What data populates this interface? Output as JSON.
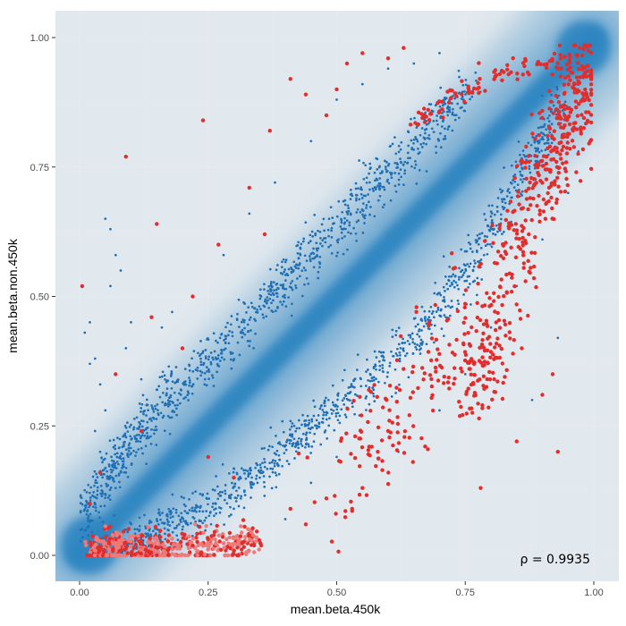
{
  "chart_data": {
    "type": "scatter",
    "xlabel": "mean.beta.450k",
    "ylabel": "mean.beta.non.450k",
    "xlim": [
      0,
      1
    ],
    "ylim": [
      0,
      1
    ],
    "x_ticks": [
      "0.00",
      "0.25",
      "0.50",
      "0.75",
      "1.00"
    ],
    "y_ticks": [
      "0.00",
      "0.25",
      "0.50",
      "0.75",
      "1.00"
    ],
    "grid": true,
    "annotation": "ρ = 0.9935",
    "colors": {
      "panel_background": "#ebebeb",
      "gridline": "#ffffff",
      "density_high": "#2e86c1",
      "blue_points": "#1f6fb4",
      "red_points": "#e32d2d",
      "red_points_light": "#ef7a7a"
    },
    "background": {
      "type": "density-2d",
      "ridges": [
        {
          "x": [
            0.0,
            0.1,
            0.25,
            0.5,
            0.75,
            1.0
          ],
          "y": [
            0.0,
            0.1,
            0.25,
            0.5,
            0.75,
            1.0
          ]
        }
      ]
    },
    "series": [
      {
        "color": "#1f6fb4",
        "segments": [
          {
            "x": [
              0.01,
              0.08,
              0.17,
              0.3,
              0.42,
              0.55,
              0.67,
              0.76
            ],
            "y": [
              0.06,
              0.2,
              0.3,
              0.42,
              0.55,
              0.69,
              0.81,
              0.9
            ],
            "n": 1050,
            "spread": 0.025
          },
          {
            "x": [
              0.05,
              0.15,
              0.25,
              0.35,
              0.45,
              0.55,
              0.65,
              0.75,
              0.85,
              0.94
            ],
            "y": [
              0.003,
              0.045,
              0.09,
              0.16,
              0.25,
              0.33,
              0.42,
              0.54,
              0.72,
              0.88
            ],
            "n": 1050,
            "spread": 0.022
          }
        ],
        "outliers": [
          [
            0.01,
            0.43
          ],
          [
            0.02,
            0.45
          ],
          [
            0.03,
            0.38
          ],
          [
            0.04,
            0.33
          ],
          [
            0.05,
            0.28
          ],
          [
            0.06,
            0.52
          ],
          [
            0.07,
            0.58
          ],
          [
            0.08,
            0.55
          ],
          [
            0.09,
            0.4
          ],
          [
            0.1,
            0.45
          ],
          [
            0.12,
            0.34
          ],
          [
            0.05,
            0.65
          ],
          [
            0.06,
            0.63
          ],
          [
            0.02,
            0.37
          ],
          [
            0.04,
            0.2
          ],
          [
            0.03,
            0.24
          ],
          [
            0.13,
            0.29
          ],
          [
            0.14,
            0.26
          ],
          [
            0.16,
            0.44
          ],
          [
            0.18,
            0.47
          ],
          [
            0.07,
            0.13
          ],
          [
            0.09,
            0.16
          ],
          [
            0.11,
            0.22
          ],
          [
            0.15,
            0.07
          ],
          [
            0.2,
            0.05
          ],
          [
            0.22,
            0.12
          ],
          [
            0.3,
            0.09
          ],
          [
            0.35,
            0.03
          ],
          [
            0.4,
            0.07
          ],
          [
            0.45,
            0.14
          ],
          [
            0.5,
            0.19
          ],
          [
            0.28,
            0.58
          ],
          [
            0.33,
            0.66
          ],
          [
            0.38,
            0.72
          ],
          [
            0.45,
            0.8
          ],
          [
            0.5,
            0.88
          ],
          [
            0.55,
            0.91
          ],
          [
            0.6,
            0.94
          ],
          [
            0.65,
            0.95
          ],
          [
            0.7,
            0.97
          ],
          [
            0.62,
            0.2
          ],
          [
            0.7,
            0.28
          ],
          [
            0.75,
            0.35
          ],
          [
            0.8,
            0.44
          ],
          [
            0.85,
            0.52
          ],
          [
            0.9,
            0.61
          ],
          [
            0.93,
            0.42
          ],
          [
            0.88,
            0.3
          ],
          [
            0.95,
            0.7
          ],
          [
            0.97,
            0.78
          ]
        ]
      },
      {
        "color": "#e32d2d",
        "segments": [
          {
            "x": [
              0.02,
              0.06,
              0.12,
              0.2,
              0.28,
              0.35
            ],
            "y": [
              0.005,
              0.012,
              0.015,
              0.018,
              0.02,
              0.03
            ],
            "n": 520,
            "spread": 0.018,
            "light": true
          },
          {
            "x": [
              0.75,
              0.8,
              0.85,
              0.9,
              0.94,
              0.97,
              0.99
            ],
            "y": [
              0.3,
              0.42,
              0.58,
              0.72,
              0.82,
              0.9,
              0.96
            ],
            "n": 480,
            "spread": 0.05
          },
          {
            "x": [
              0.65,
              0.7,
              0.75,
              0.8,
              0.85,
              0.9,
              0.95
            ],
            "y": [
              0.84,
              0.87,
              0.9,
              0.92,
              0.94,
              0.95,
              0.96
            ],
            "n": 90,
            "spread": 0.012
          },
          {
            "x": [
              0.5,
              0.55,
              0.6,
              0.66,
              0.72,
              0.78
            ],
            "y": [
              0.15,
              0.2,
              0.26,
              0.33,
              0.42,
              0.5
            ],
            "n": 150,
            "spread": 0.06
          }
        ],
        "outliers": [
          [
            0.005,
            0.52
          ],
          [
            0.09,
            0.77
          ],
          [
            0.24,
            0.84
          ],
          [
            0.37,
            0.82
          ],
          [
            0.5,
            0.9
          ],
          [
            0.15,
            0.64
          ],
          [
            0.22,
            0.5
          ],
          [
            0.2,
            0.4
          ],
          [
            0.33,
            0.71
          ],
          [
            0.36,
            0.62
          ],
          [
            0.27,
            0.6
          ],
          [
            0.14,
            0.46
          ],
          [
            0.07,
            0.35
          ],
          [
            0.12,
            0.24
          ],
          [
            0.04,
            0.16
          ],
          [
            0.02,
            0.1
          ],
          [
            0.25,
            0.19
          ],
          [
            0.3,
            0.15
          ],
          [
            0.41,
            0.09
          ],
          [
            0.44,
            0.06
          ],
          [
            0.48,
            0.11
          ],
          [
            0.53,
            0.09
          ],
          [
            0.55,
            0.13
          ],
          [
            0.58,
            0.2
          ],
          [
            0.6,
            0.24
          ],
          [
            0.63,
            0.36
          ],
          [
            0.68,
            0.45
          ],
          [
            0.78,
            0.13
          ],
          [
            0.85,
            0.22
          ],
          [
            0.9,
            0.31
          ],
          [
            0.93,
            0.2
          ],
          [
            0.92,
            0.35
          ],
          [
            0.86,
            0.4
          ],
          [
            0.41,
            0.92
          ],
          [
            0.44,
            0.89
          ],
          [
            0.48,
            0.85
          ],
          [
            0.52,
            0.95
          ],
          [
            0.55,
            0.97
          ],
          [
            0.6,
            0.96
          ],
          [
            0.63,
            0.98
          ]
        ]
      }
    ]
  }
}
